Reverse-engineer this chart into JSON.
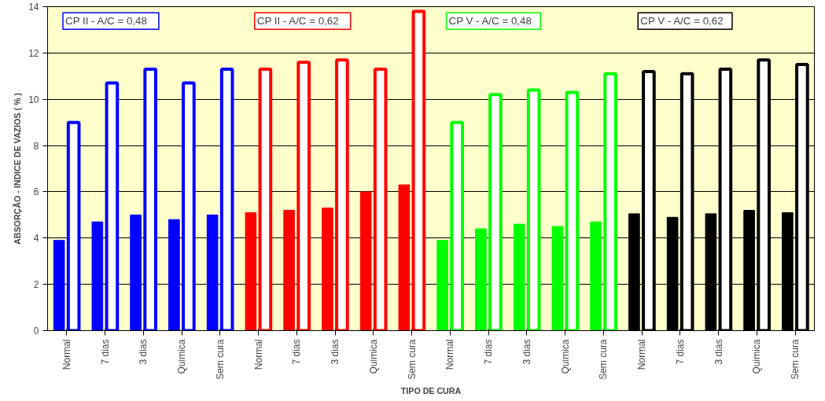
{
  "chart_data": {
    "type": "bar",
    "xlabel": "TIPO DE CURA",
    "ylabel": "ABSORÇÃO - INDICE DE VAZIOS ( % )",
    "categories": [
      "Normal",
      "7 dias",
      "3 dias",
      "Quimica",
      "Sem cura",
      "Normal",
      "7 dias",
      "3 dias",
      "Quimica",
      "Sem cura",
      "Normal",
      "7 dias",
      "3 dias",
      "Quimica",
      "Sem cura",
      "Normal",
      "7 dias",
      "3 dias",
      "Quimica",
      "Sem cura"
    ],
    "series": [
      {
        "colors": [
          "#0000ff",
          "#0000ff",
          "#0000ff",
          "#0000ff",
          "#0000ff",
          "#ff0000",
          "#ff0000",
          "#ff0000",
          "#ff0000",
          "#ff0000",
          "#00ff00",
          "#00ff00",
          "#00ff00",
          "#00ff00",
          "#00ff00",
          "#000000",
          "#000000",
          "#000000",
          "#000000",
          "#000000"
        ],
        "values": [
          3.9,
          4.7,
          5.0,
          4.8,
          5.0,
          5.1,
          5.2,
          5.3,
          6.0,
          6.3,
          3.9,
          4.4,
          4.6,
          4.5,
          4.7,
          5.05,
          4.9,
          5.05,
          5.2,
          5.1
        ]
      },
      {
        "colors": [
          "#0000ff",
          "#0000ff",
          "#0000ff",
          "#0000ff",
          "#0000ff",
          "#ff0000",
          "#ff0000",
          "#ff0000",
          "#ff0000",
          "#ff0000",
          "#00ff00",
          "#00ff00",
          "#00ff00",
          "#00ff00",
          "#00ff00",
          "#000000",
          "#000000",
          "#000000",
          "#000000",
          "#000000"
        ],
        "values": [
          9.0,
          10.7,
          11.3,
          10.7,
          11.3,
          11.3,
          11.6,
          11.7,
          11.3,
          13.8,
          9.0,
          10.2,
          10.4,
          10.3,
          11.1,
          11.2,
          11.1,
          11.3,
          11.7,
          11.5
        ]
      }
    ],
    "ylim": [
      0,
      14
    ],
    "yticks": [
      0,
      2,
      4,
      6,
      8,
      10,
      12,
      14
    ],
    "grid": "y",
    "annotations": [
      "CP II  -   A/C = 0,48",
      "CP II  -   A/C = 0,62",
      "CP V  -  A/C = 0,48",
      "CP V  -  A/C = 0,62"
    ]
  }
}
